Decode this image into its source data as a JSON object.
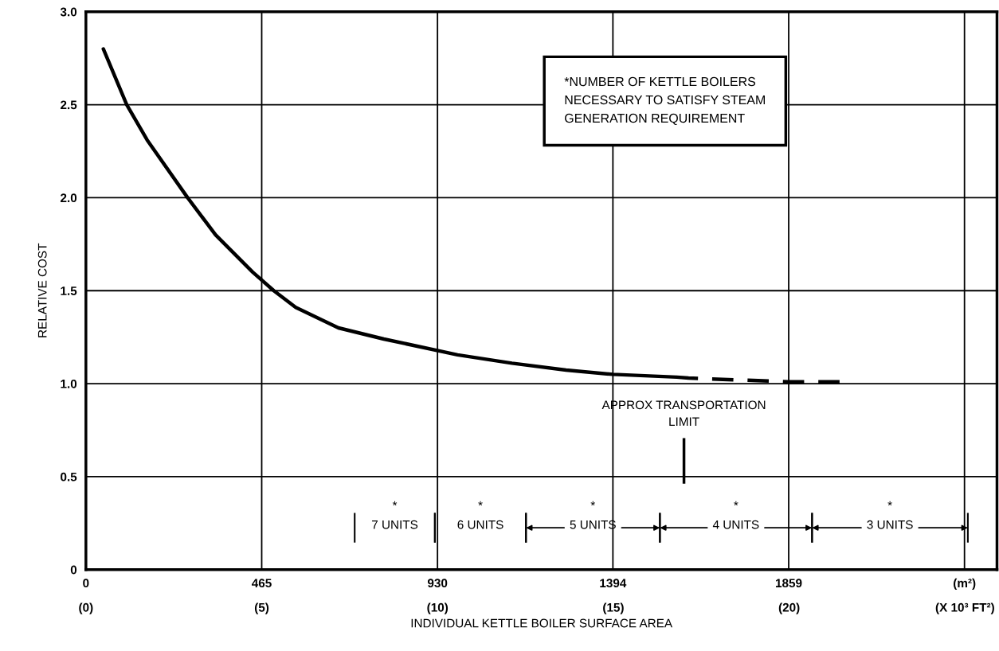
{
  "chart_data": {
    "type": "line",
    "xlabel": "INDIVIDUAL KETTLE BOILER SURFACE AREA",
    "ylabel": "RELATIVE COST",
    "series": [
      {
        "color": "#000000",
        "line_style": "solid",
        "x": [
          46,
          108,
          162,
          269,
          343,
          441,
          497,
          555,
          668,
          788,
          983,
          1127,
          1270,
          1394,
          1563
        ],
        "values": [
          2.8,
          2.5,
          2.31,
          2.0,
          1.8,
          1.6,
          1.5,
          1.41,
          1.3,
          1.24,
          1.155,
          1.11,
          1.073,
          1.05,
          1.035
        ]
      },
      {
        "color": "#000000",
        "line_style": "dashed",
        "x": [
          1563,
          1594,
          1859,
          1994
        ],
        "values": [
          1.035,
          1.03,
          1.01,
          1.01
        ]
      }
    ],
    "xlim": [
      0,
      2410
    ],
    "xticks": [
      0,
      465,
      930,
      1394,
      1859,
      {
        "value": 2324,
        "label": "(m²)"
      }
    ],
    "x2lim": [
      0,
      25.91
    ],
    "x2ticks": [
      {
        "value": 0,
        "label": "(0)"
      },
      {
        "value": 5,
        "label": "(5)"
      },
      {
        "value": 10,
        "label": "(10)"
      },
      {
        "value": 15,
        "label": "(15)"
      },
      {
        "value": 20,
        "label": "(20)"
      },
      {
        "value": 25,
        "label": "(X 10³ FT²)"
      }
    ],
    "ylim": [
      0,
      3.0
    ],
    "yticks": [
      {
        "value": 0,
        "label": "0"
      },
      {
        "value": 0.5,
        "label": "0.5"
      },
      {
        "value": 1.0,
        "label": "1.0"
      },
      {
        "value": 1.5,
        "label": "1.5"
      },
      {
        "value": 2.0,
        "label": "2.0"
      },
      {
        "value": 2.5,
        "label": "2.5"
      },
      {
        "value": 3.0,
        "label": "3.0"
      }
    ],
    "grid": true,
    "ref_lines": [
      {
        "axis": "x",
        "value": 1582,
        "label": "APPROX TRANSPORTATION\nLIMIT"
      }
    ],
    "annotations": [
      "*NUMBER OF KETTLE BOILERS\nNECESSARY TO SATISFY STEAM\nGENERATION REQUIREMENT",
      "*\n7 UNITS",
      "*\n6 UNITS",
      "*\n5 UNITS",
      "*\n4 UNITS",
      "*\n3 UNITS"
    ]
  }
}
